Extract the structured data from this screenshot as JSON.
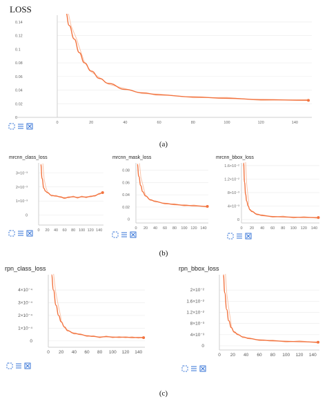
{
  "colors": {
    "line": "#f2733f",
    "line_faint": "#f9c3a8",
    "axis": "#cfcfcf",
    "icon": "#2f6fd6"
  },
  "icons": [
    "expand-icon",
    "list-icon",
    "fit-icon"
  ],
  "panel_labels": {
    "a": "(a)",
    "b": "(b)",
    "c": "(c)"
  },
  "chart_data": [
    {
      "id": "loss",
      "type": "line",
      "title": "LOSS",
      "xlim": [
        0,
        150
      ],
      "ylim": [
        0,
        0.15
      ],
      "xticks": [
        0,
        20,
        40,
        60,
        80,
        100,
        120,
        140
      ],
      "yticks": [
        0,
        0.02,
        0.04,
        0.06,
        0.08,
        0.1,
        0.12,
        0.14
      ],
      "xtick_labels": [
        "0",
        "20",
        "40",
        "60",
        "80",
        "100",
        "120",
        "140"
      ],
      "ytick_labels": [
        "0",
        "0.02",
        "0.04",
        "0.06",
        "0.08",
        "0.1",
        "0.12",
        "0.14"
      ],
      "x": [
        5,
        7,
        10,
        13,
        16,
        20,
        25,
        30,
        40,
        50,
        60,
        80,
        100,
        120,
        148
      ],
      "y": [
        0.155,
        0.135,
        0.115,
        0.095,
        0.08,
        0.068,
        0.057,
        0.05,
        0.041,
        0.036,
        0.033,
        0.03,
        0.028,
        0.026,
        0.025
      ]
    },
    {
      "id": "mrcnn_class_loss",
      "type": "line",
      "title": "mrcnn_class_loss",
      "xlim": [
        0,
        150
      ],
      "ylim": [
        -0.0007,
        0.0037
      ],
      "xticks": [
        0,
        20,
        40,
        60,
        80,
        100,
        120,
        140
      ],
      "yticks": [
        0,
        0.001,
        0.002,
        0.003
      ],
      "xtick_labels": [
        "0",
        "20",
        "40",
        "60",
        "80",
        "100",
        "120",
        "140"
      ],
      "ytick_labels": [
        "0",
        "1×10⁻³",
        "2×10⁻³",
        "3×10⁻³"
      ],
      "x": [
        5,
        8,
        12,
        16,
        20,
        30,
        40,
        50,
        60,
        70,
        80,
        90,
        100,
        110,
        120,
        130,
        140,
        148
      ],
      "y": [
        0.0036,
        0.0026,
        0.0019,
        0.0017,
        0.0016,
        0.0014,
        0.00135,
        0.0013,
        0.0012,
        0.00128,
        0.0013,
        0.00125,
        0.0013,
        0.00128,
        0.00132,
        0.00138,
        0.0015,
        0.0016
      ]
    },
    {
      "id": "mrcnn_mask_loss",
      "type": "line",
      "title": "mrcnn_mask_loss",
      "xlim": [
        0,
        150
      ],
      "ylim": [
        -0.006,
        0.092
      ],
      "xticks": [
        0,
        20,
        40,
        60,
        80,
        100,
        120,
        140
      ],
      "yticks": [
        0,
        0.02,
        0.04,
        0.06,
        0.08
      ],
      "xtick_labels": [
        "0",
        "20",
        "40",
        "60",
        "80",
        "100",
        "120",
        "140"
      ],
      "ytick_labels": [
        "0",
        "0.02",
        "0.04",
        "0.06",
        "0.08"
      ],
      "x": [
        3,
        6,
        10,
        14,
        20,
        30,
        40,
        60,
        80,
        100,
        120,
        148
      ],
      "y": [
        0.09,
        0.07,
        0.055,
        0.045,
        0.038,
        0.032,
        0.029,
        0.026,
        0.024,
        0.023,
        0.022,
        0.021
      ]
    },
    {
      "id": "mrcnn_bbox_loss",
      "type": "line",
      "title": "mrcnn_bbox_loss",
      "xlim": [
        0,
        150
      ],
      "ylim": [
        -0.001,
        0.0168
      ],
      "xticks": [
        0,
        20,
        40,
        60,
        80,
        100,
        120,
        140
      ],
      "yticks": [
        0,
        0.004,
        0.008,
        0.012,
        0.016
      ],
      "xtick_labels": [
        "0",
        "20",
        "40",
        "60",
        "80",
        "100",
        "120",
        "140"
      ],
      "ytick_labels": [
        "0",
        "4×10⁻³",
        "8×10⁻³",
        "1.2×10⁻²",
        "1.6×10⁻²"
      ],
      "x": [
        4,
        6,
        8,
        10,
        13,
        16,
        20,
        30,
        40,
        60,
        80,
        100,
        120,
        148
      ],
      "y": [
        0.0168,
        0.011,
        0.0075,
        0.0055,
        0.004,
        0.003,
        0.0024,
        0.0016,
        0.0012,
        0.0009,
        0.0008,
        0.0007,
        0.00065,
        0.0006
      ]
    },
    {
      "id": "rpn_class_loss",
      "type": "line",
      "title": "rpn_class_loss",
      "xlim": [
        0,
        150
      ],
      "ylim": [
        -5e-05,
        0.00052
      ],
      "xticks": [
        0,
        20,
        40,
        60,
        80,
        100,
        120,
        140
      ],
      "yticks": [
        0,
        0.0001,
        0.0002,
        0.0003,
        0.0004
      ],
      "xtick_labels": [
        "0",
        "20",
        "40",
        "60",
        "80",
        "100",
        "120",
        "140"
      ],
      "ytick_labels": [
        "0",
        "1×10⁻⁴",
        "2×10⁻⁴",
        "3×10⁻⁴",
        "4×10⁻⁴"
      ],
      "x": [
        5,
        8,
        12,
        16,
        20,
        25,
        30,
        40,
        50,
        60,
        70,
        80,
        90,
        100,
        110,
        120,
        130,
        140,
        148
      ],
      "y": [
        0.00052,
        0.0004,
        0.00028,
        0.0002,
        0.00015,
        0.00011,
        8e-05,
        6e-05,
        5e-05,
        4e-05,
        3.5e-05,
        3e-05,
        3.3e-05,
        3e-05,
        2.8e-05,
        3e-05,
        2.6e-05,
        2.7e-05,
        2.5e-05
      ]
    },
    {
      "id": "rpn_bbox_loss",
      "type": "line",
      "title": "rpn_bbox_loss",
      "xlim": [
        0,
        150
      ],
      "ylim": [
        -0.0015,
        0.0255
      ],
      "xticks": [
        0,
        20,
        40,
        60,
        80,
        100,
        120,
        140
      ],
      "yticks": [
        0,
        0.004,
        0.008,
        0.012,
        0.016,
        0.02
      ],
      "xtick_labels": [
        "0",
        "20",
        "40",
        "60",
        "80",
        "100",
        "120",
        "140"
      ],
      "ytick_labels": [
        "0",
        "4×10⁻³",
        "8×10⁻³",
        "1.2×10⁻²",
        "1.6×10⁻²",
        "2×10⁻²"
      ],
      "x": [
        6,
        8,
        11,
        14,
        18,
        22,
        28,
        35,
        45,
        60,
        80,
        100,
        120,
        148
      ],
      "y": [
        0.0255,
        0.019,
        0.013,
        0.009,
        0.0065,
        0.005,
        0.004,
        0.0032,
        0.0026,
        0.0021,
        0.0018,
        0.0016,
        0.0015,
        0.0013
      ]
    }
  ]
}
